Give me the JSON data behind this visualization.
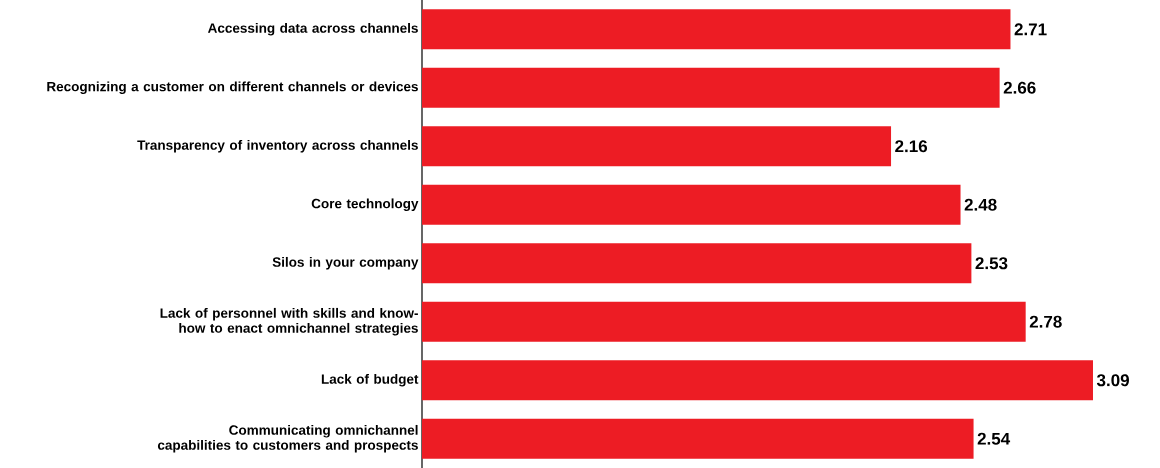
{
  "chart_data": {
    "type": "bar",
    "orientation": "horizontal",
    "data_labels": true,
    "color": "#ed1c24",
    "categories": [
      "Accessing data across channels",
      "Recognizing a customer on different channels or devices",
      "Transparency of inventory across channels",
      "Core technology",
      "Silos in your company",
      "Lack of personnel with skills and know-how to enact omnichannel strategies",
      "Lack of budget",
      "Communicating omnichannel capabilities to customers and prospects"
    ],
    "values": [
      2.71,
      2.66,
      2.16,
      2.48,
      2.53,
      2.78,
      3.09,
      2.54
    ]
  }
}
